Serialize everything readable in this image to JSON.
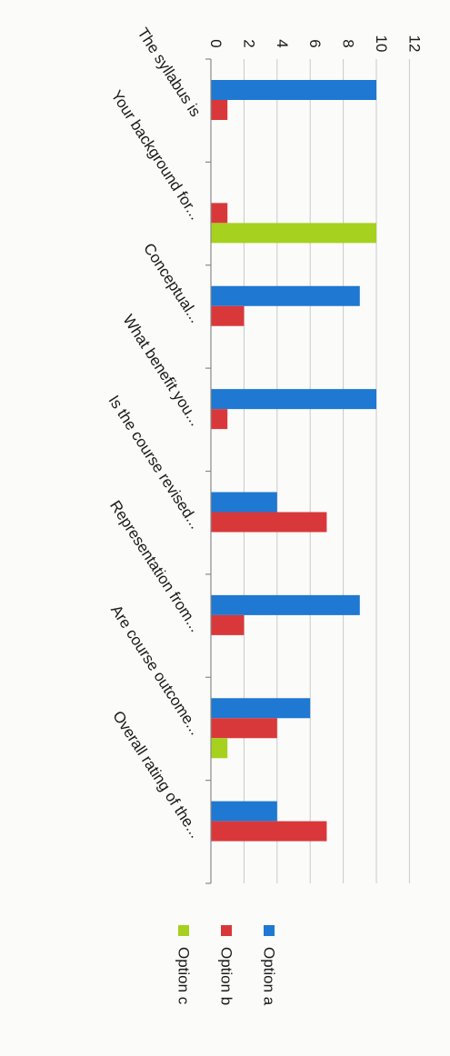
{
  "chart_data": {
    "type": "bar",
    "orientation": "horizontal (rotated 90°)",
    "categories": [
      "The syllabus is",
      "Your background for...",
      "Conceptual...",
      "What benefit you...",
      "Is the course revised...",
      "Representation from...",
      "Are course outcome...",
      "Overall rating of the..."
    ],
    "series": [
      {
        "name": "Option a",
        "color": "#1f78d1",
        "values": [
          10,
          0,
          9,
          10,
          4,
          9,
          6,
          4
        ]
      },
      {
        "name": "Option b",
        "color": "#d9383a",
        "values": [
          1,
          1,
          2,
          1,
          7,
          2,
          4,
          7
        ]
      },
      {
        "name": "Option c",
        "color": "#a6d11e",
        "values": [
          0,
          10,
          0,
          0,
          0,
          0,
          1,
          0
        ]
      }
    ],
    "ylim": [
      0,
      12
    ],
    "ticks": [
      "0",
      "2",
      "4",
      "6",
      "8",
      "10",
      "12"
    ],
    "grid": true,
    "legend": "bottom"
  }
}
